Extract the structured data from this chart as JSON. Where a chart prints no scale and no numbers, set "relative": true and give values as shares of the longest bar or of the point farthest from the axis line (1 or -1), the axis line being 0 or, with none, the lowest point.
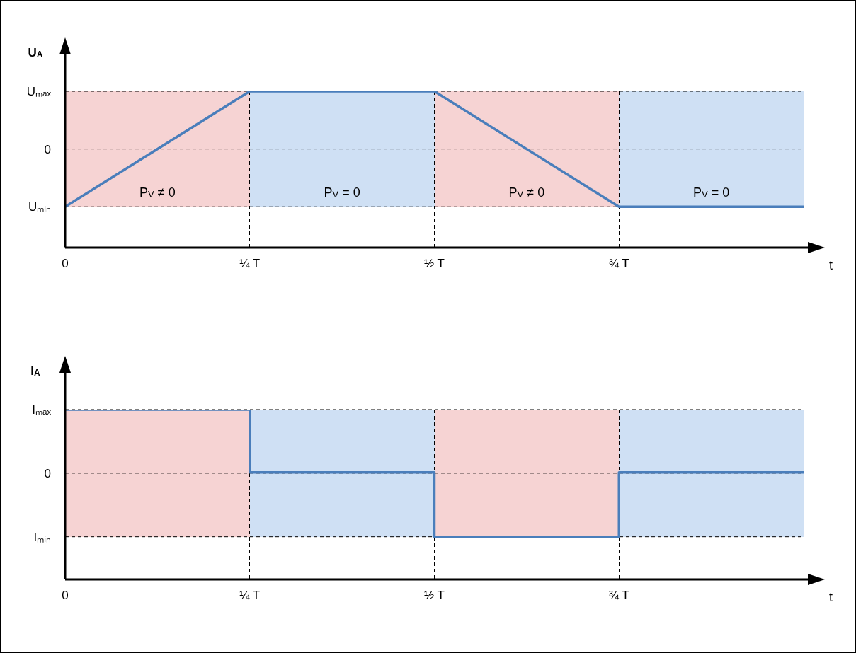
{
  "chart_data": [
    {
      "type": "line",
      "relative": true,
      "ylabel": "U$_{A}$",
      "xlabel": "t",
      "categories": [
        "0",
        "¼ T",
        "½ T",
        "¾ T",
        null
      ],
      "series": [
        {
          "color": "#4a7ebb",
          "values": [
            0.26,
            1,
            1,
            0.26,
            0.26
          ]
        }
      ],
      "annotations": [
        "Uₘₐₓ",
        "0",
        "Uₘᵢₙ",
        "P$_{V}$ ≠ 0",
        "P$_{V}$ = 0",
        "P$_{V}$ ≠ 0",
        "P$_{V}$ = 0"
      ],
      "grid": true,
      "line_style": "solid",
      "marker": "none"
    },
    {
      "type": "step",
      "relative": true,
      "ylabel": "I$_{A}$",
      "xlabel": "t",
      "categories": [
        "0",
        "¼ T",
        "½ T",
        "¾ T",
        null
      ],
      "series": [
        {
          "color": "#4a7ebb",
          "values": [
            1,
            0.63,
            0.25,
            0.63,
            0.63
          ]
        }
      ],
      "annotations": [
        "Iₘₐₓ",
        "0",
        "Iₘᵢₙ"
      ],
      "grid": true,
      "line_style": "solid",
      "marker": "none"
    }
  ]
}
